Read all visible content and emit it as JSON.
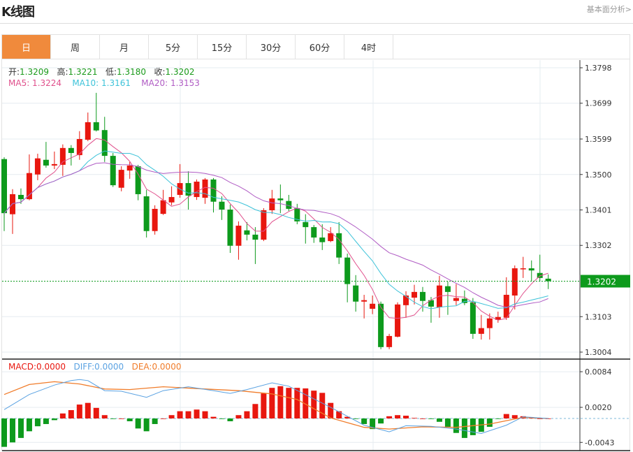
{
  "header": {
    "title": "K线图",
    "more_link": "基本面分析>"
  },
  "tabs": [
    {
      "label": "日",
      "active": true
    },
    {
      "label": "周"
    },
    {
      "label": "月"
    },
    {
      "label": "5分"
    },
    {
      "label": "15分"
    },
    {
      "label": "30分"
    },
    {
      "label": "60分"
    },
    {
      "label": "4时"
    }
  ],
  "ohlc_legend": {
    "open_label": "开:",
    "open": "1.3209",
    "high_label": "高:",
    "high": "1.3221",
    "low_label": "低:",
    "low": "1.3180",
    "close_label": "收:",
    "close": "1.3202"
  },
  "ma_legend": {
    "ma5": "MA5: 1.3224",
    "ma10": "MA10: 1.3161",
    "ma20": "MA20: 1.3153"
  },
  "macd_legend": {
    "macd": "MACD:0.0000",
    "diff": "DIFF:0.0000",
    "dea": "DEA:0.0000"
  },
  "colors": {
    "up": "#e8170f",
    "down": "#0d9a1c",
    "ma5": "#e0508c",
    "ma10": "#3ec3d9",
    "ma20": "#b05cc4",
    "diff": "#5aa2e2",
    "dea": "#f07c2a",
    "active_tab": "#f08a3c",
    "last_price": "#0d9a1c"
  },
  "chart_data": [
    {
      "type": "candlestick",
      "title": "K线图",
      "y_ticks": [
        "1.3798",
        "1.3699",
        "1.3599",
        "1.3500",
        "1.3401",
        "1.3302",
        "1.3103",
        "1.3004"
      ],
      "y_tick_values": [
        1.3798,
        1.3699,
        1.3599,
        1.35,
        1.3401,
        1.3302,
        1.3103,
        1.3004
      ],
      "last_price": "1.3202",
      "ylim": [
        1.3004,
        1.3798
      ],
      "ohlc": [
        [
          1.3543,
          1.3548,
          1.3342,
          1.3392
        ],
        [
          1.3389,
          1.3459,
          1.3334,
          1.3445
        ],
        [
          1.3443,
          1.3461,
          1.3418,
          1.3431
        ],
        [
          1.3431,
          1.3556,
          1.3428,
          1.3504
        ],
        [
          1.35,
          1.3558,
          1.3484,
          1.3545
        ],
        [
          1.3541,
          1.3591,
          1.3519,
          1.3525
        ],
        [
          1.3525,
          1.3564,
          1.3515,
          1.3529
        ],
        [
          1.3527,
          1.3584,
          1.3496,
          1.3574
        ],
        [
          1.3574,
          1.3582,
          1.3525,
          1.356
        ],
        [
          1.3554,
          1.3621,
          1.3541,
          1.3599
        ],
        [
          1.3597,
          1.3673,
          1.3593,
          1.3646
        ],
        [
          1.3646,
          1.3728,
          1.362,
          1.3623
        ],
        [
          1.3624,
          1.3661,
          1.3535,
          1.3552
        ],
        [
          1.3552,
          1.356,
          1.3465,
          1.347
        ],
        [
          1.3463,
          1.3523,
          1.3453,
          1.3513
        ],
        [
          1.3511,
          1.3535,
          1.3488,
          1.3525
        ],
        [
          1.3523,
          1.3527,
          1.3428,
          1.3445
        ],
        [
          1.3439,
          1.3457,
          1.3324,
          1.3342
        ],
        [
          1.3342,
          1.3414,
          1.3332,
          1.3404
        ],
        [
          1.339,
          1.3457,
          1.3387,
          1.3428
        ],
        [
          1.3422,
          1.3467,
          1.3414,
          1.3437
        ],
        [
          1.3443,
          1.3529,
          1.3435,
          1.3476
        ],
        [
          1.3476,
          1.3509,
          1.3402,
          1.3441
        ],
        [
          1.3437,
          1.3486,
          1.3429,
          1.348
        ],
        [
          1.3435,
          1.349,
          1.3418,
          1.3486
        ],
        [
          1.3486,
          1.349,
          1.3394,
          1.3424
        ],
        [
          1.3424,
          1.3439,
          1.3373,
          1.3402
        ],
        [
          1.3402,
          1.3416,
          1.3281,
          1.3301
        ],
        [
          1.3301,
          1.3369,
          1.3262,
          1.3357
        ],
        [
          1.3344,
          1.3367,
          1.3316,
          1.3332
        ],
        [
          1.3332,
          1.3353,
          1.325,
          1.3318
        ],
        [
          1.3318,
          1.3406,
          1.3314,
          1.34
        ],
        [
          1.34,
          1.3457,
          1.339,
          1.3433
        ],
        [
          1.3433,
          1.3472,
          1.3392,
          1.3428
        ],
        [
          1.3426,
          1.3443,
          1.3398,
          1.3404
        ],
        [
          1.3406,
          1.3418,
          1.3361,
          1.3369
        ],
        [
          1.3367,
          1.3389,
          1.3307,
          1.3353
        ],
        [
          1.3353,
          1.3359,
          1.3309,
          1.3324
        ],
        [
          1.3324,
          1.3361,
          1.3289,
          1.3311
        ],
        [
          1.3314,
          1.3353,
          1.3311,
          1.3336
        ],
        [
          1.3336,
          1.3367,
          1.325,
          1.3268
        ],
        [
          1.3268,
          1.3279,
          1.3143,
          1.3194
        ],
        [
          1.319,
          1.3219,
          1.3117,
          1.3145
        ],
        [
          1.3145,
          1.3164,
          1.3098,
          1.3149
        ],
        [
          1.3125,
          1.3162,
          1.311,
          1.3139
        ],
        [
          1.3139,
          1.3145,
          1.3012,
          1.3018
        ],
        [
          1.3018,
          1.3055,
          1.3012,
          1.3049
        ],
        [
          1.3047,
          1.3143,
          1.3045,
          1.3137
        ],
        [
          1.3135,
          1.3174,
          1.31,
          1.3162
        ],
        [
          1.3156,
          1.3192,
          1.3137,
          1.3172
        ],
        [
          1.3172,
          1.3186,
          1.3117,
          1.3147
        ],
        [
          1.3149,
          1.3158,
          1.3086,
          1.3131
        ],
        [
          1.3129,
          1.3217,
          1.31,
          1.319
        ],
        [
          1.3188,
          1.3201,
          1.3108,
          1.3172
        ],
        [
          1.3147,
          1.3194,
          1.3135,
          1.3155
        ],
        [
          1.3153,
          1.3176,
          1.3135,
          1.3141
        ],
        [
          1.3143,
          1.3155,
          1.3041,
          1.3055
        ],
        [
          1.3055,
          1.3108,
          1.3039,
          1.3071
        ],
        [
          1.3071,
          1.3112,
          1.3039,
          1.3098
        ],
        [
          1.3094,
          1.3117,
          1.3086,
          1.3102
        ],
        [
          1.31,
          1.3213,
          1.3094,
          1.3164
        ],
        [
          1.3162,
          1.3246,
          1.3123,
          1.3238
        ],
        [
          1.3236,
          1.327,
          1.3211,
          1.3238
        ],
        [
          1.3238,
          1.326,
          1.3201,
          1.3232
        ],
        [
          1.3225,
          1.3276,
          1.3201,
          1.3211
        ],
        [
          1.3209,
          1.3221,
          1.318,
          1.3202
        ]
      ],
      "ma_periods": [
        5,
        10,
        20
      ]
    },
    {
      "type": "bar+line",
      "title": "MACD",
      "y_ticks": [
        "0.0084",
        "0.0020",
        "-0.0043"
      ],
      "y_tick_values": [
        0.0084,
        0.002,
        -0.0043
      ],
      "macd": [
        -0.0051,
        -0.0043,
        -0.0035,
        -0.0023,
        -0.0014,
        -0.001,
        -0.0003,
        0.0009,
        0.0015,
        0.0025,
        0.0028,
        0.0019,
        0.0006,
        -0.0001,
        0.0,
        -0.0005,
        -0.0018,
        -0.0023,
        -0.001,
        0.0,
        0.0006,
        0.0013,
        0.0013,
        0.0016,
        0.0013,
        0.0003,
        -0.0001,
        -0.0005,
        0.0006,
        0.0013,
        0.0026,
        0.0045,
        0.0055,
        0.0058,
        0.0055,
        0.0055,
        0.0054,
        0.005,
        0.0046,
        0.0028,
        0.0013,
        0.0003,
        -0.0001,
        -0.001,
        -0.0019,
        -0.0009,
        0.0004,
        0.0006,
        0.0005,
        0.0001,
        0.0,
        -0.0001,
        -0.0006,
        -0.0015,
        -0.0026,
        -0.0035,
        -0.003,
        -0.0024,
        -0.0015,
        -0.0001,
        0.0008,
        0.0006,
        0.0004,
        0.0001,
        0.0,
        0.0
      ],
      "diff": [
        [
          0,
          0.0016
        ],
        [
          3,
          0.0043
        ],
        [
          6,
          0.006
        ],
        [
          8,
          0.0068
        ],
        [
          9,
          0.007
        ],
        [
          10,
          0.0068
        ],
        [
          12,
          0.005
        ],
        [
          14,
          0.0049
        ],
        [
          17,
          0.0038
        ],
        [
          19,
          0.005
        ],
        [
          22,
          0.0057
        ],
        [
          25,
          0.005
        ],
        [
          27,
          0.0045
        ],
        [
          29,
          0.0052
        ],
        [
          32,
          0.0064
        ],
        [
          34,
          0.0058
        ],
        [
          39,
          0.002
        ],
        [
          43,
          -0.0012
        ],
        [
          46,
          -0.0024
        ],
        [
          48,
          -0.0013
        ],
        [
          51,
          -0.0014
        ],
        [
          54,
          -0.0019
        ],
        [
          57,
          -0.0027
        ],
        [
          60,
          -0.0012
        ],
        [
          62,
          0.0003
        ],
        [
          65,
          0.0
        ]
      ],
      "dea": [
        [
          0,
          0.0043
        ],
        [
          3,
          0.0061
        ],
        [
          6,
          0.0066
        ],
        [
          9,
          0.0062
        ],
        [
          12,
          0.0053
        ],
        [
          15,
          0.0052
        ],
        [
          19,
          0.0057
        ],
        [
          24,
          0.0053
        ],
        [
          28,
          0.005
        ],
        [
          32,
          0.0044
        ],
        [
          35,
          0.0034
        ],
        [
          39,
          0.0001
        ],
        [
          43,
          -0.0016
        ],
        [
          46,
          -0.0019
        ],
        [
          50,
          -0.0015
        ],
        [
          54,
          -0.0016
        ],
        [
          58,
          -0.001
        ],
        [
          62,
          0.0002
        ],
        [
          65,
          0.0
        ]
      ]
    }
  ]
}
